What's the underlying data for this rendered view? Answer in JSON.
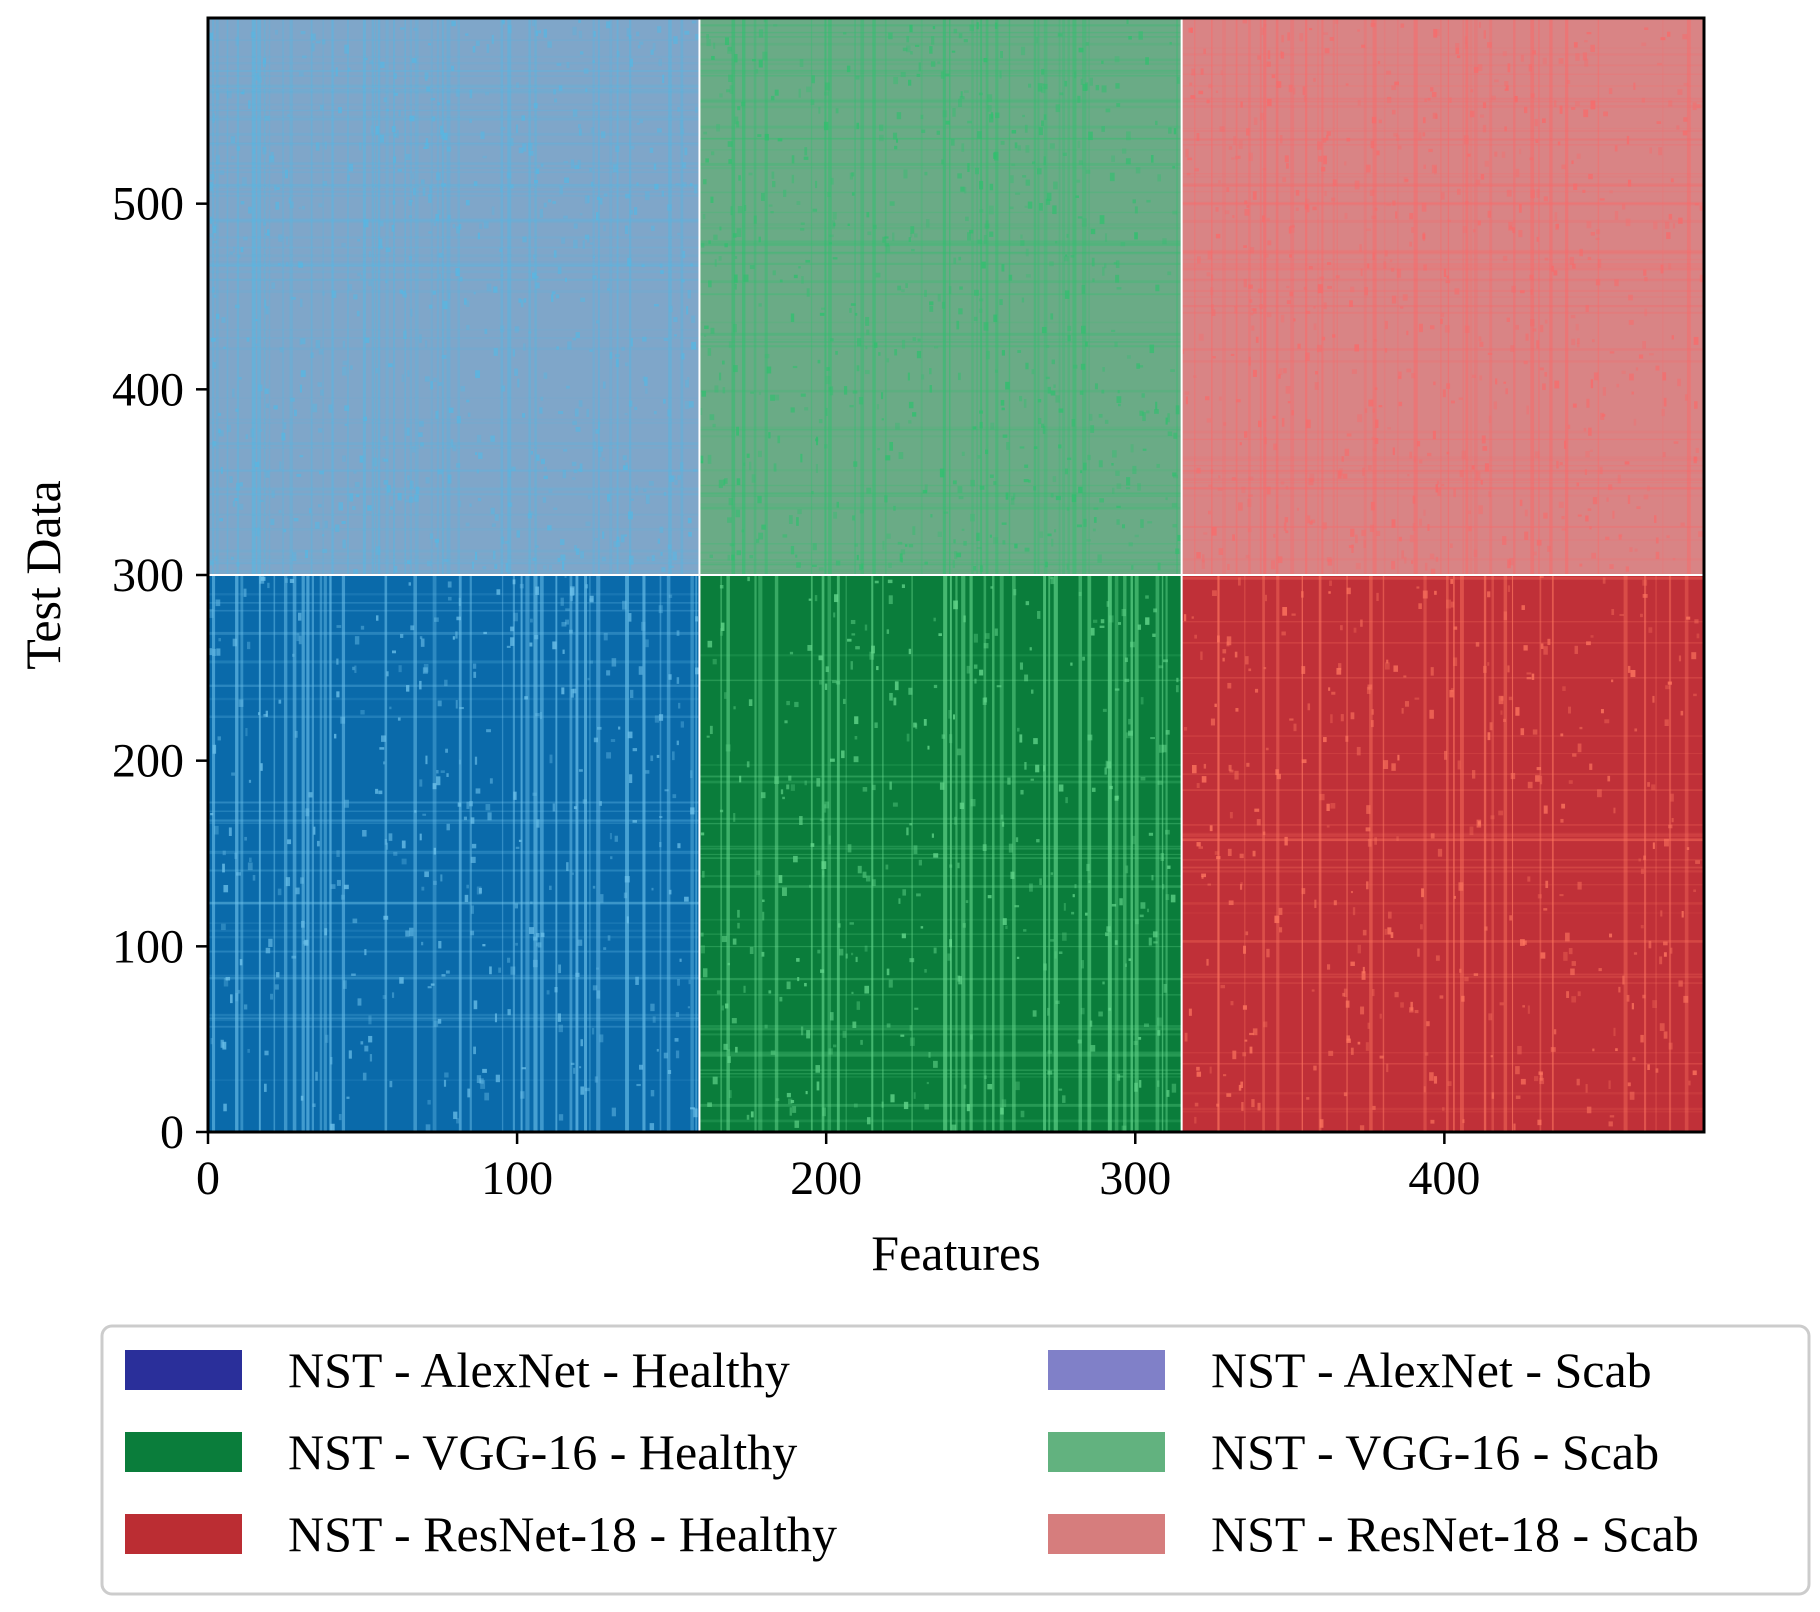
{
  "chart_data": {
    "type": "heatmap",
    "title": "",
    "xlabel": "Features",
    "ylabel": "Test Data",
    "xlim": [
      0,
      484
    ],
    "ylim": [
      0,
      600
    ],
    "xticks": [
      0,
      100,
      200,
      300,
      400
    ],
    "yticks": [
      0,
      100,
      200,
      300,
      400,
      500
    ],
    "grid": false,
    "legend_position": "bottom",
    "legend_columns": 2,
    "blocks": [
      {
        "name": "NST - AlexNet - Healthy",
        "x": [
          0,
          159
        ],
        "y": [
          0,
          300
        ],
        "color": "#0a6aaa",
        "stripe_color": "#6fc3ec"
      },
      {
        "name": "NST - VGG-16 - Healthy",
        "x": [
          159,
          315
        ],
        "y": [
          0,
          300
        ],
        "color": "#0a7d3b",
        "stripe_color": "#66d98e"
      },
      {
        "name": "NST - ResNet-18 - Healthy",
        "x": [
          315,
          484
        ],
        "y": [
          0,
          300
        ],
        "color": "#c03038",
        "stripe_color": "#ff7760"
      },
      {
        "name": "NST - AlexNet - Scab",
        "x": [
          0,
          159
        ],
        "y": [
          300,
          600
        ],
        "color": "#7fa6c9",
        "stripe_color": "#56b7e3"
      },
      {
        "name": "NST - VGG-16 - Scab",
        "x": [
          159,
          315
        ],
        "y": [
          300,
          600
        ],
        "color": "#6aab86",
        "stripe_color": "#2fc06e"
      },
      {
        "name": "NST - ResNet-18 - Scab",
        "x": [
          315,
          484
        ],
        "y": [
          300,
          600
        ],
        "color": "#d98485",
        "stripe_color": "#f96a6a"
      }
    ],
    "legend": [
      {
        "label": "NST - AlexNet - Healthy",
        "color": "#2a2f9a"
      },
      {
        "label": "NST - AlexNet - Scab",
        "color": "#8080c8"
      },
      {
        "label": "NST - VGG-16 - Healthy",
        "color": "#0a7d3b"
      },
      {
        "label": "NST - VGG-16 - Scab",
        "color": "#62b27f"
      },
      {
        "label": "NST - ResNet-18 - Healthy",
        "color": "#bb2d33"
      },
      {
        "label": "NST - ResNet-18 - Scab",
        "color": "#d67d7d"
      }
    ]
  }
}
